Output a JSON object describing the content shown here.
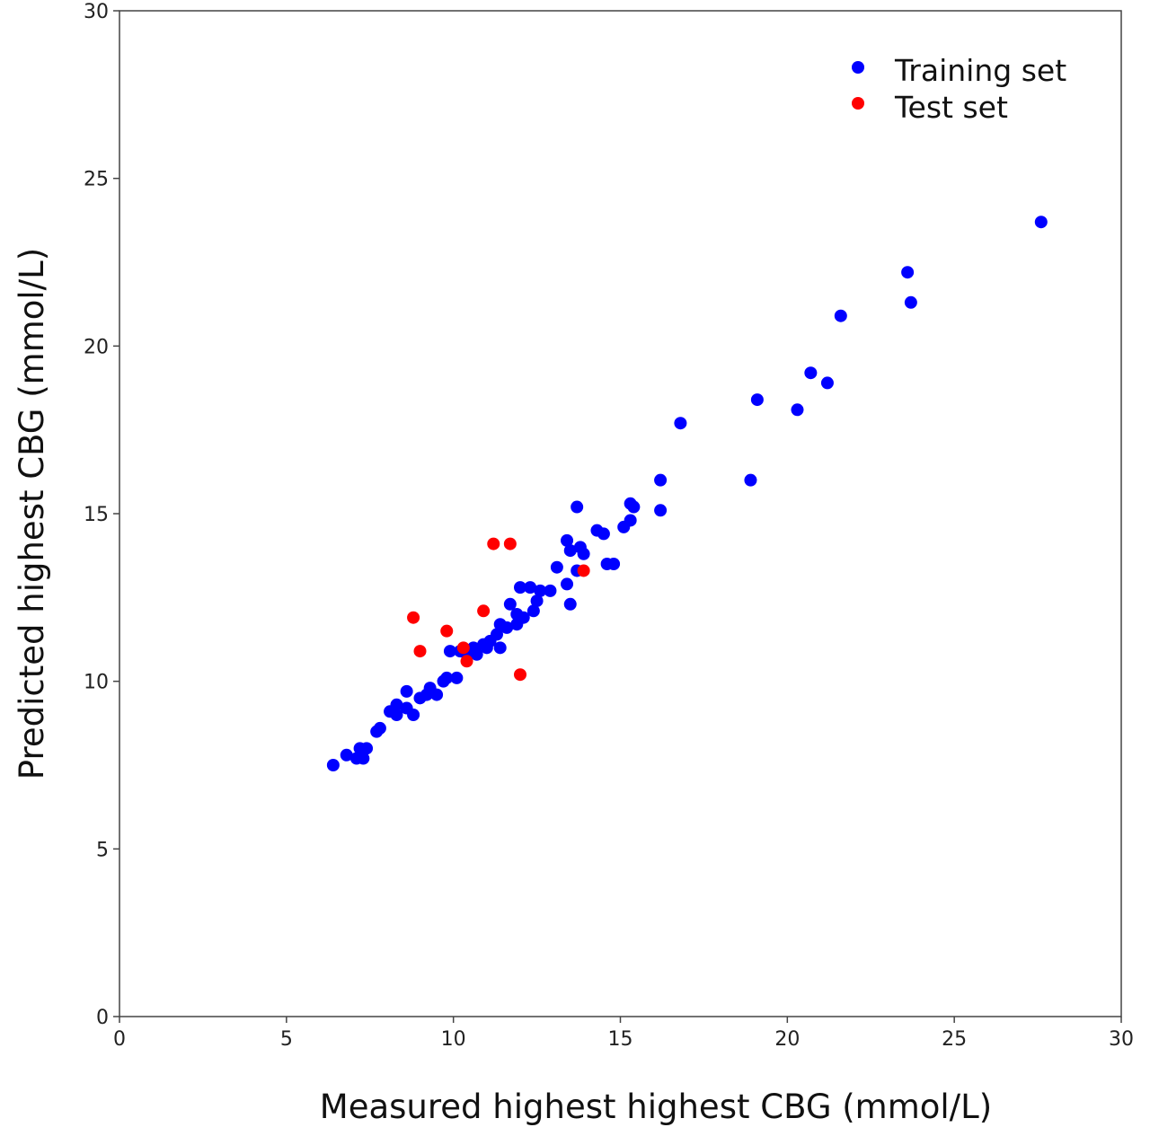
{
  "chart_data": {
    "type": "scatter",
    "title": "",
    "xlabel": "Measured highest highest CBG (mmol/L)",
    "ylabel": "Predicted highest CBG (mmol/L)",
    "xlim": [
      0,
      30
    ],
    "ylim": [
      0,
      30
    ],
    "xticks": [
      0,
      5,
      10,
      15,
      20,
      25,
      30
    ],
    "yticks": [
      0,
      5,
      10,
      15,
      20,
      25,
      30
    ],
    "grid": false,
    "legend_position": "top-right",
    "series": [
      {
        "name": "Training set",
        "color": "#0000ff",
        "points": [
          [
            6.4,
            7.5
          ],
          [
            6.8,
            7.8
          ],
          [
            7.1,
            7.7
          ],
          [
            7.2,
            8.0
          ],
          [
            7.3,
            7.7
          ],
          [
            7.4,
            8.0
          ],
          [
            7.7,
            8.5
          ],
          [
            7.8,
            8.6
          ],
          [
            8.1,
            9.1
          ],
          [
            8.3,
            9.0
          ],
          [
            8.3,
            9.3
          ],
          [
            8.6,
            9.7
          ],
          [
            8.6,
            9.2
          ],
          [
            8.8,
            9.0
          ],
          [
            9.0,
            9.5
          ],
          [
            9.2,
            9.6
          ],
          [
            9.3,
            9.8
          ],
          [
            9.5,
            9.6
          ],
          [
            9.7,
            10.0
          ],
          [
            9.8,
            10.1
          ],
          [
            9.9,
            10.9
          ],
          [
            10.1,
            10.1
          ],
          [
            10.2,
            10.9
          ],
          [
            10.4,
            10.8
          ],
          [
            10.6,
            11.0
          ],
          [
            10.7,
            10.8
          ],
          [
            10.9,
            11.1
          ],
          [
            11.0,
            11.0
          ],
          [
            11.1,
            11.2
          ],
          [
            11.3,
            11.4
          ],
          [
            11.4,
            11.0
          ],
          [
            11.4,
            11.7
          ],
          [
            11.6,
            11.6
          ],
          [
            11.7,
            12.3
          ],
          [
            11.9,
            12.0
          ],
          [
            11.9,
            11.7
          ],
          [
            12.0,
            12.8
          ],
          [
            12.1,
            11.9
          ],
          [
            12.3,
            12.8
          ],
          [
            12.4,
            12.1
          ],
          [
            12.5,
            12.4
          ],
          [
            12.6,
            12.7
          ],
          [
            12.9,
            12.7
          ],
          [
            13.1,
            13.4
          ],
          [
            13.4,
            12.9
          ],
          [
            13.4,
            14.2
          ],
          [
            13.5,
            12.3
          ],
          [
            13.5,
            13.9
          ],
          [
            13.7,
            13.3
          ],
          [
            13.7,
            15.2
          ],
          [
            13.8,
            14.0
          ],
          [
            13.9,
            13.8
          ],
          [
            14.3,
            14.5
          ],
          [
            14.5,
            14.4
          ],
          [
            14.6,
            13.5
          ],
          [
            14.8,
            13.5
          ],
          [
            15.1,
            14.6
          ],
          [
            15.3,
            14.8
          ],
          [
            15.3,
            15.3
          ],
          [
            15.4,
            15.2
          ],
          [
            16.2,
            16.0
          ],
          [
            16.2,
            15.1
          ],
          [
            16.8,
            17.7
          ],
          [
            18.9,
            16.0
          ],
          [
            19.1,
            18.4
          ],
          [
            20.3,
            18.1
          ],
          [
            20.7,
            19.2
          ],
          [
            21.2,
            18.9
          ],
          [
            21.6,
            20.9
          ],
          [
            23.6,
            22.2
          ],
          [
            23.7,
            21.3
          ],
          [
            27.6,
            23.7
          ]
        ]
      },
      {
        "name": "Test set",
        "color": "#ff0000",
        "points": [
          [
            8.8,
            11.9
          ],
          [
            9.0,
            10.9
          ],
          [
            9.8,
            11.5
          ],
          [
            10.3,
            11.0
          ],
          [
            10.4,
            10.6
          ],
          [
            10.9,
            12.1
          ],
          [
            11.2,
            14.1
          ],
          [
            11.7,
            14.1
          ],
          [
            12.0,
            10.2
          ],
          [
            13.9,
            13.3
          ]
        ]
      }
    ]
  }
}
